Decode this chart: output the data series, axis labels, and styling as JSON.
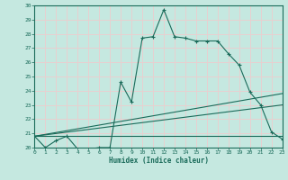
{
  "xlabel": "Humidex (Indice chaleur)",
  "xlim": [
    0,
    23
  ],
  "ylim": [
    20,
    30
  ],
  "yticks": [
    20,
    21,
    22,
    23,
    24,
    25,
    26,
    27,
    28,
    29,
    30
  ],
  "xticks": [
    0,
    1,
    2,
    3,
    4,
    5,
    6,
    7,
    8,
    9,
    10,
    11,
    12,
    13,
    14,
    15,
    16,
    17,
    18,
    19,
    20,
    21,
    22,
    23
  ],
  "bg_color": "#c5e8e0",
  "line_color": "#1a6b5a",
  "grid_color": "#e8d0d0",
  "lines": [
    {
      "x": [
        0,
        1,
        2,
        3,
        4,
        5,
        6,
        7,
        8,
        9,
        10,
        11,
        12,
        13,
        14,
        15,
        16,
        17,
        18,
        19,
        20,
        21,
        22,
        23
      ],
      "y": [
        20.8,
        20.0,
        20.5,
        20.8,
        19.9,
        19.9,
        20.0,
        20.0,
        24.6,
        23.2,
        27.7,
        27.8,
        29.7,
        27.8,
        27.7,
        27.5,
        27.5,
        27.5,
        26.6,
        25.8,
        23.9,
        23.0,
        21.1,
        20.6
      ],
      "marker": true
    },
    {
      "x": [
        0,
        23
      ],
      "y": [
        20.8,
        23.8
      ],
      "marker": false
    },
    {
      "x": [
        0,
        23
      ],
      "y": [
        20.8,
        23.0
      ],
      "marker": false
    },
    {
      "x": [
        0,
        23
      ],
      "y": [
        20.8,
        20.8
      ],
      "marker": false
    }
  ]
}
